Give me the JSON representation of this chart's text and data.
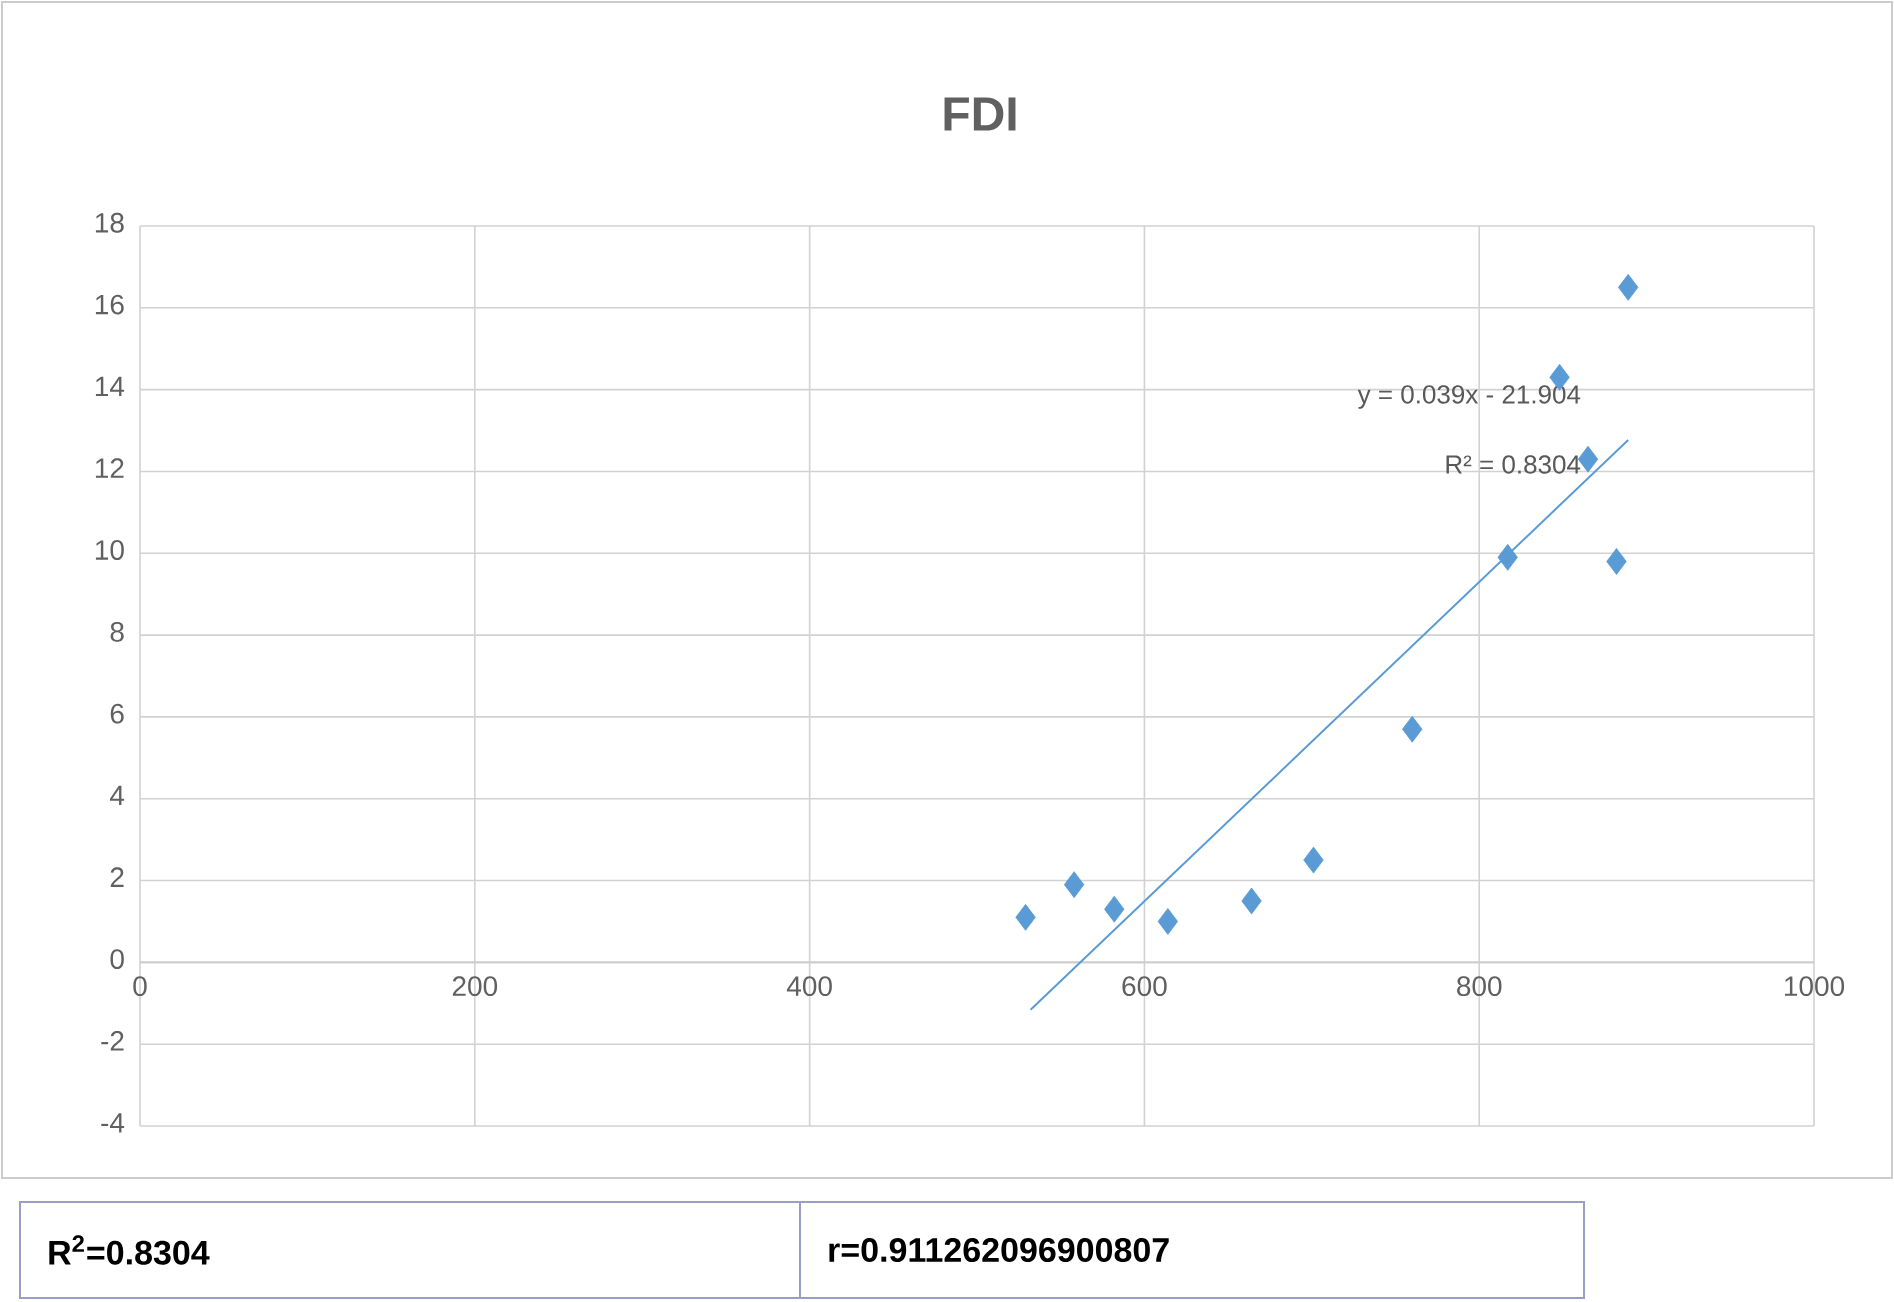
{
  "chart_data": {
    "type": "scatter",
    "title": "FDI",
    "xlim": [
      0,
      1000
    ],
    "xticks": [
      0,
      200,
      400,
      600,
      800,
      1000
    ],
    "ylim": [
      -4,
      18
    ],
    "yticks": [
      -4,
      -2,
      0,
      2,
      4,
      6,
      8,
      10,
      12,
      14,
      16,
      18
    ],
    "grid": true,
    "series": [
      {
        "marker": "diamond",
        "color": "#5b9bd5",
        "x": [
          529,
          558,
          582,
          614,
          664,
          701,
          760,
          817,
          848,
          865,
          882,
          889
        ],
        "values": [
          1.1,
          1.9,
          1.3,
          1.0,
          1.5,
          2.5,
          5.7,
          9.9,
          14.3,
          12.3,
          9.8,
          16.5
        ]
      },
      {
        "type": "line",
        "color": "#5b9bd5",
        "x": [
          532,
          889
        ],
        "values": [
          -1.16,
          12.77
        ]
      }
    ],
    "annotations": [
      "y = 0.039x - 21.904",
      "R² = 0.8304",
      "R$^{2}$=0.8304",
      "r=0.911262096900807"
    ]
  }
}
